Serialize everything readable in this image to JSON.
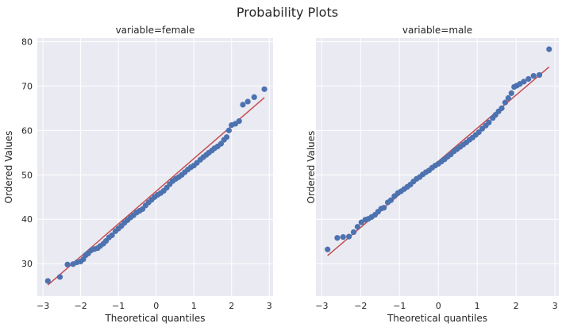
{
  "figure": {
    "suptitle": "Probability Plots"
  },
  "chart_data": [
    {
      "type": "scatter",
      "title": "variable=female",
      "xlabel": "Theoretical quantiles",
      "ylabel": "Ordered Values",
      "xlim": [
        -3.15,
        3.1
      ],
      "ylim": [
        22.7,
        80.8
      ],
      "xticks": [
        -3,
        -2,
        -1,
        0,
        1,
        2,
        3
      ],
      "yticks": [
        30,
        40,
        50,
        60,
        70,
        80
      ],
      "grid": true,
      "colors": {
        "points": "#4c72b0",
        "fit_line": "#c44e52",
        "background": "#eaeaf2"
      },
      "fit_line": {
        "x": [
          -2.87,
          2.87
        ],
        "y": [
          25.2,
          67.4
        ]
      },
      "series": [
        {
          "values": [
            [
              -2.87,
              26.1
            ],
            [
              -2.55,
              27.0
            ],
            [
              -2.35,
              29.8
            ],
            [
              -2.2,
              29.9
            ],
            [
              -2.1,
              30.3
            ],
            [
              -2.0,
              30.5
            ],
            [
              -1.93,
              31.0
            ],
            [
              -1.87,
              31.9
            ],
            [
              -1.8,
              32.3
            ],
            [
              -1.72,
              33.0
            ],
            [
              -1.63,
              33.3
            ],
            [
              -1.55,
              33.5
            ],
            [
              -1.48,
              34.0
            ],
            [
              -1.4,
              34.5
            ],
            [
              -1.33,
              35.1
            ],
            [
              -1.25,
              35.9
            ],
            [
              -1.17,
              36.4
            ],
            [
              -1.08,
              37.3
            ],
            [
              -1.0,
              37.9
            ],
            [
              -0.92,
              38.5
            ],
            [
              -0.84,
              39.2
            ],
            [
              -0.76,
              39.8
            ],
            [
              -0.68,
              40.4
            ],
            [
              -0.6,
              40.9
            ],
            [
              -0.52,
              41.5
            ],
            [
              -0.44,
              41.9
            ],
            [
              -0.36,
              42.3
            ],
            [
              -0.28,
              43.1
            ],
            [
              -0.2,
              43.8
            ],
            [
              -0.12,
              44.4
            ],
            [
              -0.04,
              45.0
            ],
            [
              0.04,
              45.5
            ],
            [
              0.12,
              45.9
            ],
            [
              0.2,
              46.4
            ],
            [
              0.28,
              47.1
            ],
            [
              0.36,
              47.9
            ],
            [
              0.44,
              48.6
            ],
            [
              0.52,
              49.1
            ],
            [
              0.6,
              49.5
            ],
            [
              0.68,
              50.0
            ],
            [
              0.76,
              50.6
            ],
            [
              0.84,
              51.2
            ],
            [
              0.92,
              51.7
            ],
            [
              1.0,
              52.1
            ],
            [
              1.08,
              52.7
            ],
            [
              1.17,
              53.4
            ],
            [
              1.25,
              54.0
            ],
            [
              1.33,
              54.5
            ],
            [
              1.4,
              55.0
            ],
            [
              1.48,
              55.5
            ],
            [
              1.55,
              56.0
            ],
            [
              1.63,
              56.4
            ],
            [
              1.72,
              57.0
            ],
            [
              1.8,
              57.9
            ],
            [
              1.87,
              58.5
            ],
            [
              1.93,
              60.0
            ],
            [
              2.0,
              61.2
            ],
            [
              2.1,
              61.5
            ],
            [
              2.2,
              62.1
            ],
            [
              2.3,
              65.8
            ],
            [
              2.43,
              66.5
            ],
            [
              2.6,
              67.5
            ],
            [
              2.87,
              69.3
            ]
          ]
        }
      ]
    },
    {
      "type": "scatter",
      "title": "variable=male",
      "xlabel": "Theoretical quantiles",
      "ylabel": "Ordered Values",
      "xlim": [
        -3.15,
        3.1
      ],
      "ylim": [
        22.7,
        80.8
      ],
      "xticks": [
        -3,
        -2,
        -1,
        0,
        1,
        2,
        3
      ],
      "yticks": [
        30,
        40,
        50,
        60,
        70,
        80
      ],
      "grid": true,
      "colors": {
        "points": "#4c72b0",
        "fit_line": "#c44e52",
        "background": "#eaeaf2"
      },
      "fit_line": {
        "x": [
          -2.85,
          2.85
        ],
        "y": [
          31.8,
          74.3
        ]
      },
      "series": [
        {
          "values": [
            [
              -2.85,
              33.2
            ],
            [
              -2.6,
              35.8
            ],
            [
              -2.45,
              36.0
            ],
            [
              -2.3,
              36.1
            ],
            [
              -2.18,
              37.1
            ],
            [
              -2.08,
              38.3
            ],
            [
              -1.98,
              39.3
            ],
            [
              -1.88,
              39.9
            ],
            [
              -1.8,
              40.1
            ],
            [
              -1.72,
              40.5
            ],
            [
              -1.63,
              41.0
            ],
            [
              -1.55,
              41.7
            ],
            [
              -1.47,
              42.4
            ],
            [
              -1.4,
              42.6
            ],
            [
              -1.3,
              43.8
            ],
            [
              -1.22,
              44.3
            ],
            [
              -1.13,
              45.2
            ],
            [
              -1.04,
              45.9
            ],
            [
              -0.96,
              46.3
            ],
            [
              -0.88,
              46.8
            ],
            [
              -0.8,
              47.3
            ],
            [
              -0.72,
              47.8
            ],
            [
              -0.64,
              48.5
            ],
            [
              -0.56,
              49.1
            ],
            [
              -0.48,
              49.5
            ],
            [
              -0.4,
              50.1
            ],
            [
              -0.32,
              50.6
            ],
            [
              -0.24,
              51.0
            ],
            [
              -0.16,
              51.6
            ],
            [
              -0.08,
              52.1
            ],
            [
              0.0,
              52.5
            ],
            [
              0.08,
              53.0
            ],
            [
              0.16,
              53.5
            ],
            [
              0.24,
              54.1
            ],
            [
              0.32,
              54.6
            ],
            [
              0.4,
              55.3
            ],
            [
              0.48,
              55.8
            ],
            [
              0.56,
              56.3
            ],
            [
              0.64,
              56.8
            ],
            [
              0.72,
              57.3
            ],
            [
              0.8,
              57.9
            ],
            [
              0.88,
              58.4
            ],
            [
              0.96,
              59.0
            ],
            [
              1.04,
              59.6
            ],
            [
              1.13,
              60.4
            ],
            [
              1.22,
              61.1
            ],
            [
              1.3,
              61.8
            ],
            [
              1.4,
              62.8
            ],
            [
              1.47,
              63.5
            ],
            [
              1.55,
              64.3
            ],
            [
              1.63,
              65.0
            ],
            [
              1.72,
              66.3
            ],
            [
              1.8,
              67.3
            ],
            [
              1.88,
              68.4
            ],
            [
              1.95,
              69.8
            ],
            [
              2.02,
              70.1
            ],
            [
              2.1,
              70.5
            ],
            [
              2.2,
              71.0
            ],
            [
              2.32,
              71.6
            ],
            [
              2.45,
              72.3
            ],
            [
              2.6,
              72.5
            ],
            [
              2.85,
              78.3
            ]
          ]
        }
      ]
    }
  ]
}
